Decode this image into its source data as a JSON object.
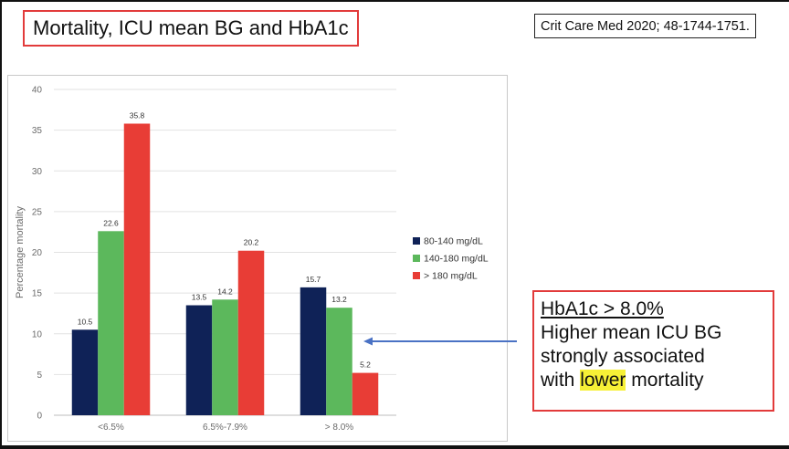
{
  "slide": {
    "title": "Mortality, ICU mean BG and HbA1c",
    "citation": "Crit Care Med 2020; 48-1744-1751."
  },
  "note": {
    "heading": "HbA1c > 8.0%",
    "line1": "Higher mean ICU BG",
    "line2": "strongly associated",
    "line3_pre": "with ",
    "line3_highlight": "lower",
    "line3_post": " mortality",
    "highlight_color": "#f6f036",
    "arrow_color": "#4a72c4"
  },
  "chart_data": {
    "type": "bar",
    "categories": [
      "<6.5%",
      "6.5%-7.9%",
      "> 8.0%"
    ],
    "series": [
      {
        "name": "80-140 mg/dL",
        "color": "#0f2257",
        "values": [
          10.5,
          13.5,
          15.7
        ]
      },
      {
        "name": "140-180 mg/dL",
        "color": "#5cb85c",
        "values": [
          22.6,
          14.2,
          13.2
        ]
      },
      {
        "name": "> 180 mg/dL",
        "color": "#e83d36",
        "values": [
          35.8,
          20.2,
          5.2
        ]
      }
    ],
    "value_labels": [
      [
        "10.5",
        "13.5",
        "15.7"
      ],
      [
        "22.6",
        "14.2",
        "13.2"
      ],
      [
        "35.8",
        "20.2",
        "5.2"
      ]
    ],
    "title": "",
    "xlabel": "",
    "ylabel": "Percentage mortality",
    "ylim": [
      0,
      40
    ],
    "yticks": [
      0,
      5,
      10,
      15,
      20,
      25,
      30,
      35,
      40
    ],
    "ytick_labels": [
      "0",
      "5",
      "10",
      "15",
      "20",
      "25",
      "30",
      "35",
      "40"
    ],
    "grid": true,
    "legend": "right"
  }
}
